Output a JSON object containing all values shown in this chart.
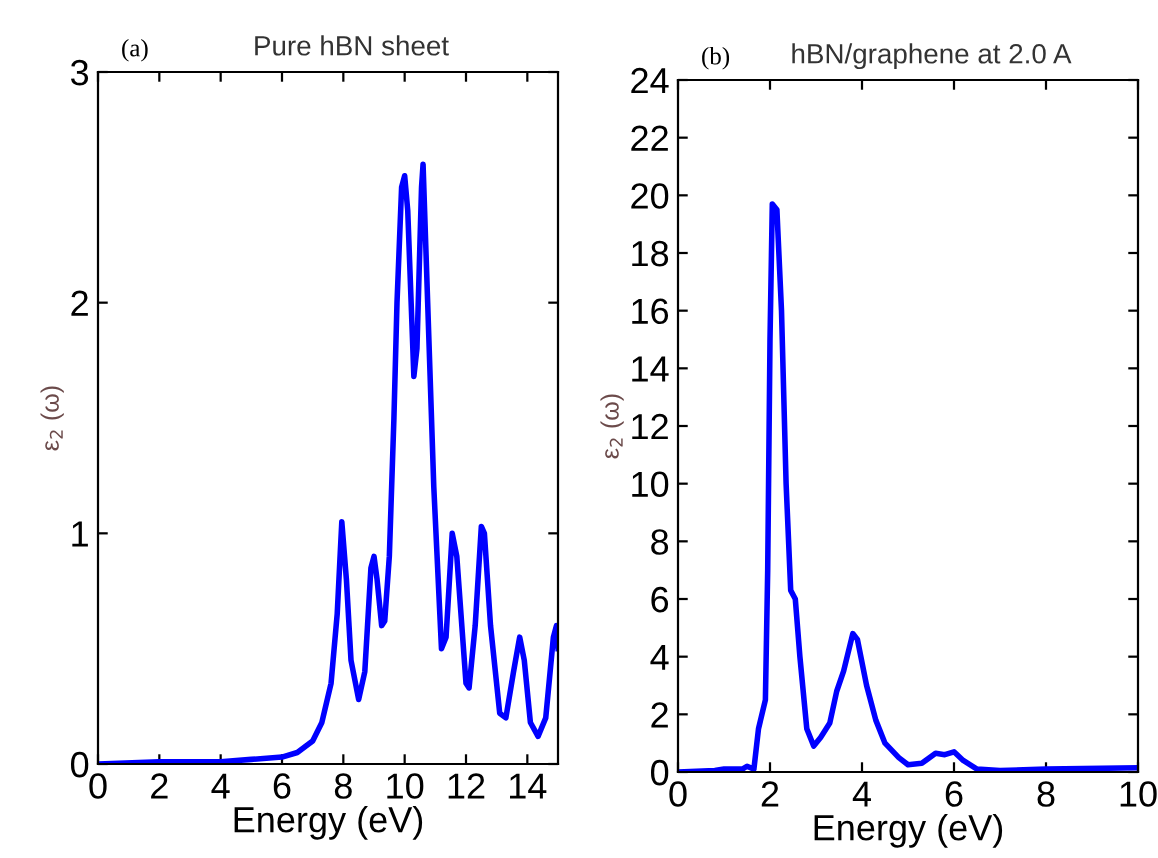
{
  "chart_data": [
    {
      "type": "line",
      "title": "Pure hBN sheet",
      "xlabel": "Energy (eV)",
      "ylabel": "ε$_{2}$ (ω)",
      "annotations": [
        "(a)"
      ],
      "xlim": [
        0,
        15
      ],
      "ylim": [
        0,
        3
      ],
      "xticks": [
        0,
        2,
        4,
        6,
        8,
        10,
        12,
        14
      ],
      "yticks": [
        0,
        1,
        2,
        3
      ],
      "grid": false,
      "legend": false,
      "series": [
        {
          "color": "#0000ff",
          "x": [
            0,
            2,
            4,
            5,
            6,
            6.5,
            7,
            7.3,
            7.6,
            7.8,
            7.95,
            8.1,
            8.25,
            8.5,
            8.7,
            8.9,
            9.0,
            9.1,
            9.25,
            9.35,
            9.5,
            9.65,
            9.75,
            9.9,
            10.0,
            10.1,
            10.3,
            10.4,
            10.55,
            10.6,
            10.75,
            10.95,
            11.2,
            11.35,
            11.55,
            11.7,
            12.0,
            12.1,
            12.3,
            12.5,
            12.6,
            12.8,
            13.1,
            13.3,
            13.55,
            13.75,
            13.9,
            14.1,
            14.35,
            14.6,
            14.85,
            14.95,
            15
          ],
          "values": [
            0,
            0.01,
            0.01,
            0.02,
            0.03,
            0.05,
            0.1,
            0.18,
            0.35,
            0.65,
            1.05,
            0.8,
            0.45,
            0.28,
            0.4,
            0.85,
            0.9,
            0.8,
            0.6,
            0.62,
            0.9,
            1.5,
            2.0,
            2.5,
            2.55,
            2.4,
            1.68,
            1.8,
            2.5,
            2.6,
            2.0,
            1.2,
            0.5,
            0.55,
            1.0,
            0.9,
            0.35,
            0.33,
            0.6,
            1.03,
            1.0,
            0.6,
            0.22,
            0.2,
            0.4,
            0.55,
            0.45,
            0.18,
            0.12,
            0.2,
            0.55,
            0.6,
            0.5
          ]
        }
      ]
    },
    {
      "type": "line",
      "title": "hBN/graphene at 2.0 A",
      "xlabel": "Energy (eV)",
      "ylabel": "ε$_{2}$ (ω)",
      "annotations": [
        "(b)"
      ],
      "xlim": [
        0,
        10
      ],
      "ylim": [
        0,
        24
      ],
      "xticks": [
        0,
        2,
        4,
        6,
        8,
        10
      ],
      "yticks": [
        0,
        2,
        4,
        6,
        8,
        10,
        12,
        14,
        16,
        18,
        20,
        22,
        24
      ],
      "grid": false,
      "legend": false,
      "series": [
        {
          "color": "#0000ff",
          "x": [
            0,
            0.8,
            1.0,
            1.4,
            1.5,
            1.65,
            1.75,
            1.9,
            1.95,
            2.0,
            2.05,
            2.15,
            2.25,
            2.35,
            2.45,
            2.55,
            2.65,
            2.8,
            2.95,
            3.1,
            3.3,
            3.45,
            3.6,
            3.8,
            3.9,
            4.1,
            4.3,
            4.5,
            4.8,
            5.0,
            5.3,
            5.6,
            5.8,
            6.0,
            6.2,
            6.5,
            7,
            8,
            10
          ],
          "values": [
            0,
            0.05,
            0.1,
            0.1,
            0.2,
            0.1,
            1.5,
            2.5,
            7,
            15,
            19.7,
            19.5,
            16,
            10,
            6.3,
            6,
            4,
            1.5,
            0.9,
            1.2,
            1.7,
            2.8,
            3.5,
            4.8,
            4.6,
            3,
            1.8,
            1.0,
            0.5,
            0.25,
            0.3,
            0.65,
            0.6,
            0.7,
            0.4,
            0.1,
            0.05,
            0.1,
            0.15
          ]
        }
      ]
    }
  ]
}
